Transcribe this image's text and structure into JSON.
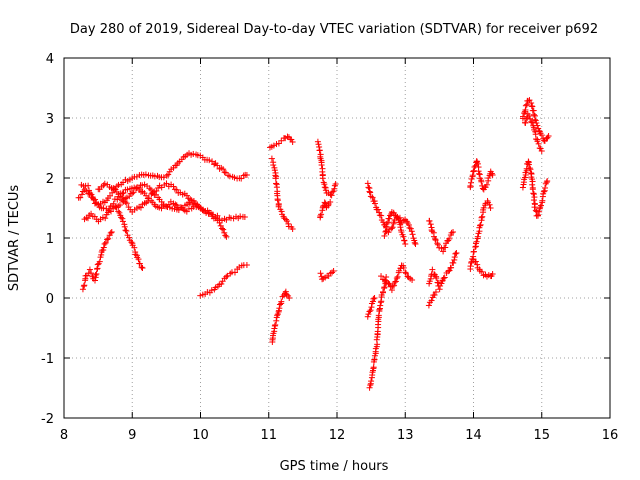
{
  "chart_data": {
    "type": "scatter",
    "title": "Day 280 of 2019, Sidereal Day-to-day VTEC variation (SDTVAR) for receiver p692",
    "xlabel": "GPS time / hours",
    "ylabel": "SDTVAR / TECUs",
    "xlim": [
      8,
      16
    ],
    "ylim": [
      -2,
      4
    ],
    "xticks": [
      "8",
      "9",
      "10",
      "11",
      "12",
      "13",
      "14",
      "15",
      "16"
    ],
    "yticks": [
      "-2",
      "-1",
      "0",
      "1",
      "2",
      "3",
      "4"
    ],
    "grid": true,
    "marker": "+",
    "color": "#ff0000",
    "tracks": [
      [
        [
          8.22,
          1.65
        ],
        [
          8.3,
          1.8
        ],
        [
          8.4,
          1.7
        ],
        [
          8.5,
          1.55
        ],
        [
          8.6,
          1.6
        ],
        [
          8.7,
          1.75
        ],
        [
          8.8,
          1.9
        ],
        [
          8.9,
          1.95
        ],
        [
          9.0,
          2.0
        ],
        [
          9.1,
          2.05
        ],
        [
          9.2,
          2.05
        ],
        [
          9.3,
          2.05
        ],
        [
          9.4,
          2.0
        ],
        [
          9.5,
          2.05
        ],
        [
          9.6,
          2.15
        ],
        [
          9.7,
          2.3
        ],
        [
          9.8,
          2.4
        ],
        [
          9.9,
          2.38
        ],
        [
          10.0,
          2.35
        ],
        [
          10.1,
          2.3
        ],
        [
          10.2,
          2.25
        ],
        [
          10.3,
          2.15
        ],
        [
          10.4,
          2.05
        ],
        [
          10.5,
          2.0
        ],
        [
          10.6,
          2.0
        ],
        [
          10.68,
          2.05
        ]
      ],
      [
        [
          8.25,
          1.9
        ],
        [
          8.35,
          1.85
        ],
        [
          8.45,
          1.6
        ],
        [
          8.55,
          1.5
        ],
        [
          8.65,
          1.45
        ],
        [
          8.75,
          1.5
        ],
        [
          8.85,
          1.6
        ],
        [
          8.95,
          1.7
        ],
        [
          9.05,
          1.8
        ],
        [
          9.15,
          1.9
        ],
        [
          9.25,
          1.85
        ],
        [
          9.35,
          1.7
        ],
        [
          9.45,
          1.55
        ],
        [
          9.55,
          1.5
        ],
        [
          9.65,
          1.45
        ],
        [
          9.75,
          1.5
        ],
        [
          9.85,
          1.6
        ],
        [
          9.95,
          1.55
        ],
        [
          10.05,
          1.45
        ],
        [
          10.15,
          1.4
        ],
        [
          10.25,
          1.35
        ],
        [
          10.35,
          1.3
        ],
        [
          10.45,
          1.35
        ],
        [
          10.55,
          1.35
        ],
        [
          10.65,
          1.35
        ]
      ],
      [
        [
          8.3,
          1.3
        ],
        [
          8.4,
          1.4
        ],
        [
          8.5,
          1.3
        ],
        [
          8.6,
          1.35
        ],
        [
          8.7,
          1.55
        ],
        [
          8.8,
          1.7
        ],
        [
          8.9,
          1.8
        ],
        [
          9.0,
          1.85
        ],
        [
          9.1,
          1.8
        ],
        [
          9.2,
          1.7
        ],
        [
          9.3,
          1.6
        ],
        [
          9.4,
          1.5
        ],
        [
          9.5,
          1.55
        ],
        [
          9.6,
          1.6
        ],
        [
          9.7,
          1.5
        ],
        [
          9.8,
          1.45
        ],
        [
          9.9,
          1.5
        ],
        [
          10.0,
          1.5
        ],
        [
          10.1,
          1.45
        ],
        [
          10.2,
          1.35
        ],
        [
          10.3,
          1.2
        ],
        [
          10.38,
          1.02
        ]
      ],
      [
        [
          8.5,
          1.8
        ],
        [
          8.6,
          1.9
        ],
        [
          8.7,
          1.85
        ],
        [
          8.8,
          1.75
        ],
        [
          8.9,
          1.6
        ],
        [
          9.0,
          1.45
        ],
        [
          9.1,
          1.5
        ],
        [
          9.2,
          1.6
        ],
        [
          9.3,
          1.75
        ],
        [
          9.4,
          1.85
        ],
        [
          9.5,
          1.9
        ],
        [
          9.6,
          1.85
        ],
        [
          9.7,
          1.75
        ],
        [
          9.8,
          1.7
        ],
        [
          9.9,
          1.6
        ],
        [
          10.0,
          1.5
        ]
      ],
      [
        [
          8.8,
          1.45
        ],
        [
          8.85,
          1.3
        ],
        [
          8.92,
          1.1
        ],
        [
          9.0,
          0.9
        ],
        [
          9.05,
          0.75
        ],
        [
          9.1,
          0.6
        ],
        [
          9.15,
          0.5
        ]
      ],
      [
        [
          8.28,
          0.15
        ],
        [
          8.32,
          0.35
        ],
        [
          8.38,
          0.45
        ],
        [
          8.45,
          0.3
        ],
        [
          8.5,
          0.55
        ],
        [
          8.55,
          0.75
        ],
        [
          8.6,
          0.9
        ],
        [
          8.65,
          1.0
        ],
        [
          8.7,
          1.1
        ]
      ],
      [
        [
          10.0,
          0.05
        ],
        [
          10.1,
          0.08
        ],
        [
          10.2,
          0.12
        ],
        [
          10.3,
          0.25
        ],
        [
          10.4,
          0.38
        ],
        [
          10.5,
          0.45
        ],
        [
          10.6,
          0.52
        ],
        [
          10.68,
          0.55
        ]
      ],
      [
        [
          11.02,
          2.5
        ],
        [
          11.08,
          2.55
        ],
        [
          11.15,
          2.6
        ],
        [
          11.22,
          2.65
        ],
        [
          11.3,
          2.7
        ],
        [
          11.35,
          2.6
        ]
      ],
      [
        [
          11.05,
          2.3
        ],
        [
          11.1,
          2.1
        ],
        [
          11.12,
          1.8
        ],
        [
          11.15,
          1.5
        ],
        [
          11.2,
          1.4
        ],
        [
          11.25,
          1.3
        ],
        [
          11.3,
          1.2
        ],
        [
          11.35,
          1.15
        ]
      ],
      [
        [
          11.05,
          -0.75
        ],
        [
          11.08,
          -0.55
        ],
        [
          11.12,
          -0.3
        ],
        [
          11.16,
          -0.15
        ],
        [
          11.2,
          0.0
        ],
        [
          11.25,
          0.1
        ],
        [
          11.3,
          0.0
        ]
      ],
      [
        [
          11.72,
          2.6
        ],
        [
          11.75,
          2.45
        ],
        [
          11.78,
          2.2
        ],
        [
          11.8,
          1.95
        ],
        [
          11.85,
          1.75
        ],
        [
          11.9,
          1.7
        ],
        [
          11.95,
          1.8
        ],
        [
          11.98,
          1.9
        ]
      ],
      [
        [
          11.75,
          1.35
        ],
        [
          11.78,
          1.45
        ],
        [
          11.82,
          1.6
        ],
        [
          11.85,
          1.5
        ],
        [
          11.9,
          1.6
        ]
      ],
      [
        [
          11.76,
          0.4
        ],
        [
          11.8,
          0.3
        ],
        [
          11.85,
          0.35
        ],
        [
          11.9,
          0.4
        ],
        [
          11.95,
          0.45
        ]
      ],
      [
        [
          12.45,
          1.9
        ],
        [
          12.5,
          1.7
        ],
        [
          12.55,
          1.6
        ],
        [
          12.6,
          1.45
        ],
        [
          12.65,
          1.35
        ],
        [
          12.7,
          1.2
        ],
        [
          12.75,
          1.1
        ],
        [
          12.8,
          1.15
        ],
        [
          12.85,
          1.3
        ],
        [
          12.9,
          1.35
        ],
        [
          12.95,
          1.25
        ],
        [
          13.0,
          1.3
        ],
        [
          13.05,
          1.2
        ],
        [
          13.1,
          1.1
        ],
        [
          13.15,
          0.9
        ]
      ],
      [
        [
          12.7,
          1.05
        ],
        [
          12.75,
          1.3
        ],
        [
          12.8,
          1.45
        ],
        [
          12.85,
          1.4
        ],
        [
          12.9,
          1.3
        ],
        [
          12.95,
          1.1
        ],
        [
          13.0,
          0.9
        ]
      ],
      [
        [
          12.48,
          -1.5
        ],
        [
          12.52,
          -1.3
        ],
        [
          12.55,
          -1.0
        ],
        [
          12.58,
          -0.8
        ],
        [
          12.6,
          -0.5
        ],
        [
          12.62,
          -0.2
        ],
        [
          12.65,
          0.0
        ],
        [
          12.7,
          0.2
        ],
        [
          12.72,
          0.35
        ]
      ],
      [
        [
          12.45,
          -0.3
        ],
        [
          12.5,
          -0.15
        ],
        [
          12.55,
          0.0
        ]
      ],
      [
        [
          12.65,
          0.35
        ],
        [
          12.75,
          0.25
        ],
        [
          12.8,
          0.15
        ],
        [
          12.85,
          0.25
        ],
        [
          12.9,
          0.4
        ],
        [
          12.95,
          0.55
        ],
        [
          13.0,
          0.45
        ],
        [
          13.05,
          0.35
        ],
        [
          13.1,
          0.3
        ]
      ],
      [
        [
          13.35,
          1.3
        ],
        [
          13.4,
          1.1
        ],
        [
          13.45,
          0.95
        ],
        [
          13.5,
          0.85
        ],
        [
          13.55,
          0.8
        ],
        [
          13.6,
          0.9
        ],
        [
          13.65,
          1.0
        ],
        [
          13.7,
          1.1
        ]
      ],
      [
        [
          13.35,
          0.25
        ],
        [
          13.4,
          0.45
        ],
        [
          13.45,
          0.35
        ],
        [
          13.5,
          0.15
        ],
        [
          13.55,
          0.3
        ],
        [
          13.6,
          0.4
        ],
        [
          13.65,
          0.45
        ],
        [
          13.7,
          0.6
        ],
        [
          13.75,
          0.75
        ]
      ],
      [
        [
          13.35,
          -0.1
        ],
        [
          13.4,
          0.0
        ],
        [
          13.45,
          0.1
        ]
      ],
      [
        [
          13.95,
          1.85
        ],
        [
          14.0,
          2.1
        ],
        [
          14.05,
          2.3
        ],
        [
          14.1,
          2.0
        ],
        [
          14.15,
          1.8
        ],
        [
          14.2,
          1.9
        ],
        [
          14.25,
          2.1
        ],
        [
          14.28,
          2.05
        ]
      ],
      [
        [
          13.95,
          0.5
        ],
        [
          14.0,
          0.75
        ],
        [
          14.05,
          0.95
        ],
        [
          14.1,
          1.2
        ],
        [
          14.15,
          1.5
        ],
        [
          14.2,
          1.6
        ],
        [
          14.25,
          1.5
        ]
      ],
      [
        [
          14.0,
          0.65
        ],
        [
          14.05,
          0.55
        ],
        [
          14.1,
          0.45
        ],
        [
          14.15,
          0.4
        ],
        [
          14.2,
          0.38
        ],
        [
          14.25,
          0.35
        ],
        [
          14.28,
          0.4
        ]
      ],
      [
        [
          14.72,
          3.0
        ],
        [
          14.76,
          3.15
        ],
        [
          14.8,
          3.3
        ],
        [
          14.84,
          3.25
        ],
        [
          14.88,
          3.1
        ],
        [
          14.92,
          2.9
        ],
        [
          14.96,
          2.8
        ],
        [
          15.0,
          2.7
        ],
        [
          15.05,
          2.6
        ],
        [
          15.1,
          2.7
        ]
      ],
      [
        [
          14.75,
          2.9
        ],
        [
          14.8,
          3.05
        ],
        [
          14.85,
          2.95
        ],
        [
          14.9,
          2.75
        ],
        [
          14.95,
          2.55
        ],
        [
          15.0,
          2.45
        ]
      ],
      [
        [
          14.72,
          1.85
        ],
        [
          14.76,
          2.05
        ],
        [
          14.8,
          2.3
        ],
        [
          14.84,
          2.1
        ],
        [
          14.88,
          1.75
        ],
        [
          14.9,
          1.5
        ],
        [
          14.94,
          1.35
        ],
        [
          15.0,
          1.6
        ],
        [
          15.05,
          1.85
        ],
        [
          15.08,
          1.95
        ]
      ]
    ]
  }
}
